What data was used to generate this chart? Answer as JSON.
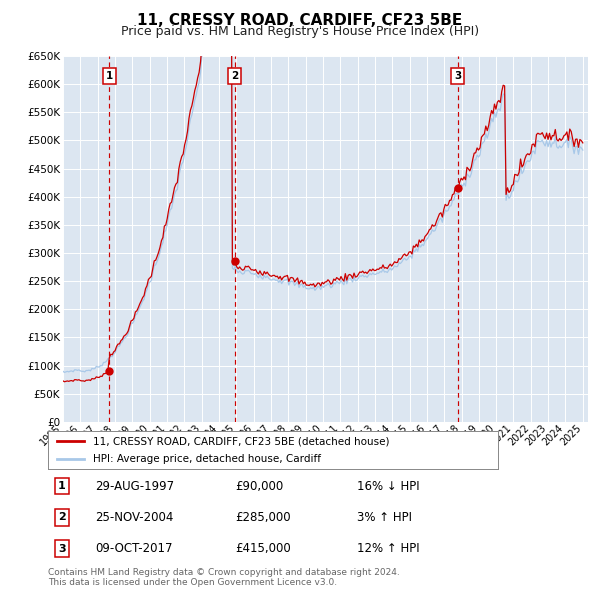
{
  "title": "11, CRESSY ROAD, CARDIFF, CF23 5BE",
  "subtitle": "Price paid vs. HM Land Registry's House Price Index (HPI)",
  "title_fontsize": 11,
  "subtitle_fontsize": 9,
  "bg_color": "#dce6f1",
  "grid_color": "#ffffff",
  "ylim": [
    0,
    650000
  ],
  "yticks": [
    0,
    50000,
    100000,
    150000,
    200000,
    250000,
    300000,
    350000,
    400000,
    450000,
    500000,
    550000,
    600000,
    650000
  ],
  "ytick_labels": [
    "£0",
    "£50K",
    "£100K",
    "£150K",
    "£200K",
    "£250K",
    "£300K",
    "£350K",
    "£400K",
    "£450K",
    "£500K",
    "£550K",
    "£600K",
    "£650K"
  ],
  "sale_color": "#cc0000",
  "hpi_color": "#a8c8e8",
  "marker_color": "#cc0000",
  "sale_label": "11, CRESSY ROAD, CARDIFF, CF23 5BE (detached house)",
  "hpi_label": "HPI: Average price, detached house, Cardiff",
  "transactions": [
    {
      "num": 1,
      "date": "29-AUG-1997",
      "price": 90000,
      "year": 1997.66,
      "rel": "16% ↓ HPI"
    },
    {
      "num": 2,
      "date": "25-NOV-2004",
      "price": 285000,
      "year": 2004.9,
      "rel": "3% ↑ HPI"
    },
    {
      "num": 3,
      "date": "09-OCT-2017",
      "price": 415000,
      "year": 2017.77,
      "rel": "12% ↑ HPI"
    }
  ],
  "footer": "Contains HM Land Registry data © Crown copyright and database right 2024.\nThis data is licensed under the Open Government Licence v3.0.",
  "xlim_start": 1995.0,
  "xlim_end": 2025.3
}
